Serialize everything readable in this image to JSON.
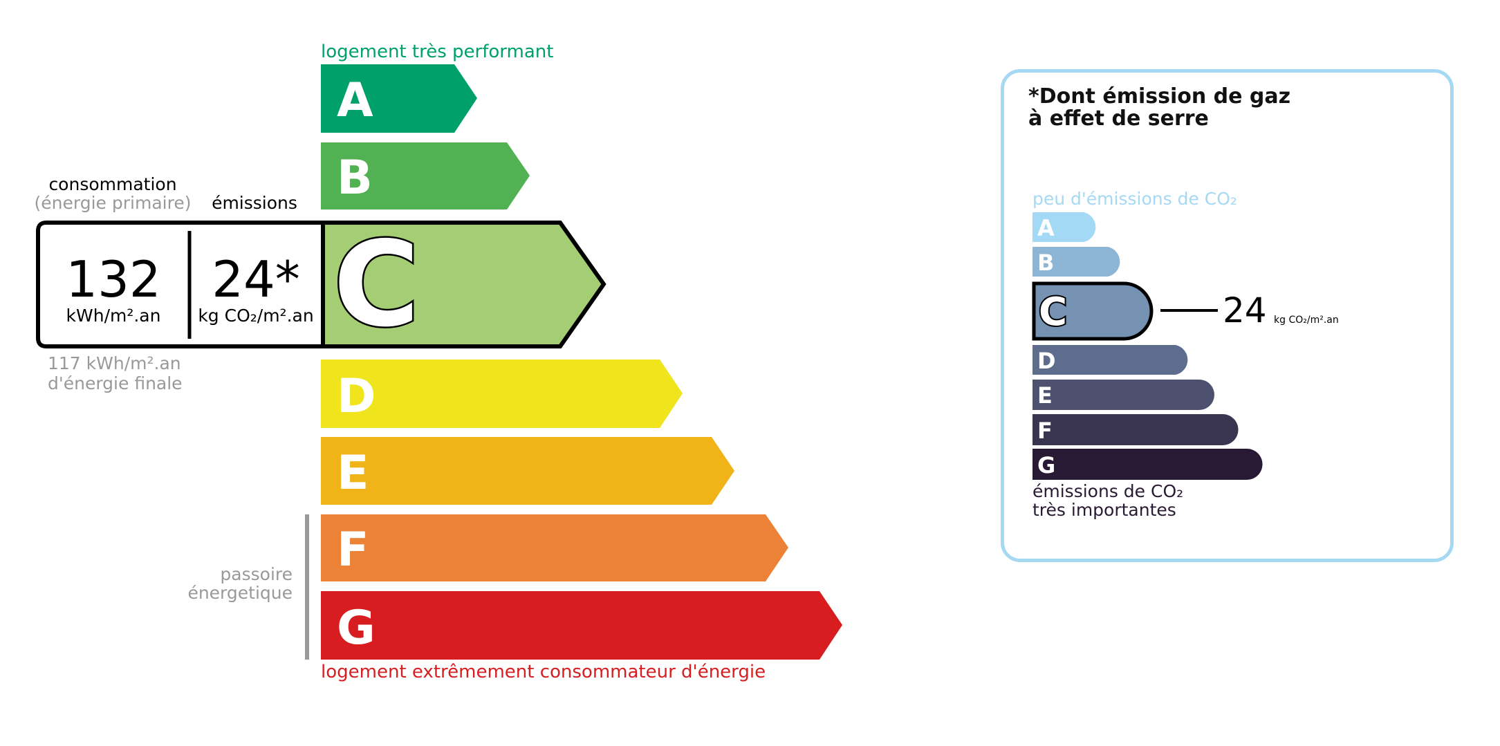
{
  "energy": {
    "top_label": "logement très performant",
    "bottom_label": "logement extrêmement consommateur d'énergie",
    "passoire_line1": "passoire",
    "passoire_line2": "énergetique",
    "consumption_title": "consommation",
    "consumption_subtitle": "(énergie primaire)",
    "emissions_title": "émissions",
    "consumption_value": "132",
    "consumption_unit": "kWh/m².an",
    "emissions_value": "24*",
    "emissions_unit": "kg CO₂/m².an",
    "final_energy_value": "117 kWh/m².an",
    "final_energy_label": "d'énergie finale",
    "current_class": "C",
    "classes": [
      {
        "letter": "A",
        "color": "#00a06b"
      },
      {
        "letter": "B",
        "color": "#51b153"
      },
      {
        "letter": "C",
        "color": "#a5cd73"
      },
      {
        "letter": "D",
        "color": "#f0e51c"
      },
      {
        "letter": "E",
        "color": "#f0b418"
      },
      {
        "letter": "F",
        "color": "#eb8235"
      },
      {
        "letter": "G",
        "color": "#d71d20"
      }
    ],
    "top_label_color": "#00a06b",
    "bottom_label_color": "#d71d20"
  },
  "ges": {
    "title_line1": "*Dont émission de gaz",
    "title_line2": "à effet de serre",
    "top_label": "peu d'émissions de CO₂",
    "bottom_line1": "émissions de CO₂",
    "bottom_line2": "très importantes",
    "value": "24",
    "unit": "kg CO₂/m².an",
    "current_class": "C",
    "classes": [
      {
        "letter": "A",
        "color": "#a4d9f5"
      },
      {
        "letter": "B",
        "color": "#8db5d5"
      },
      {
        "letter": "C",
        "color": "#7592b3"
      },
      {
        "letter": "D",
        "color": "#5e6d8e"
      },
      {
        "letter": "E",
        "color": "#4d506f"
      },
      {
        "letter": "F",
        "color": "#393551"
      },
      {
        "letter": "G",
        "color": "#281a35"
      }
    ],
    "border_color": "#a5d8f3"
  }
}
